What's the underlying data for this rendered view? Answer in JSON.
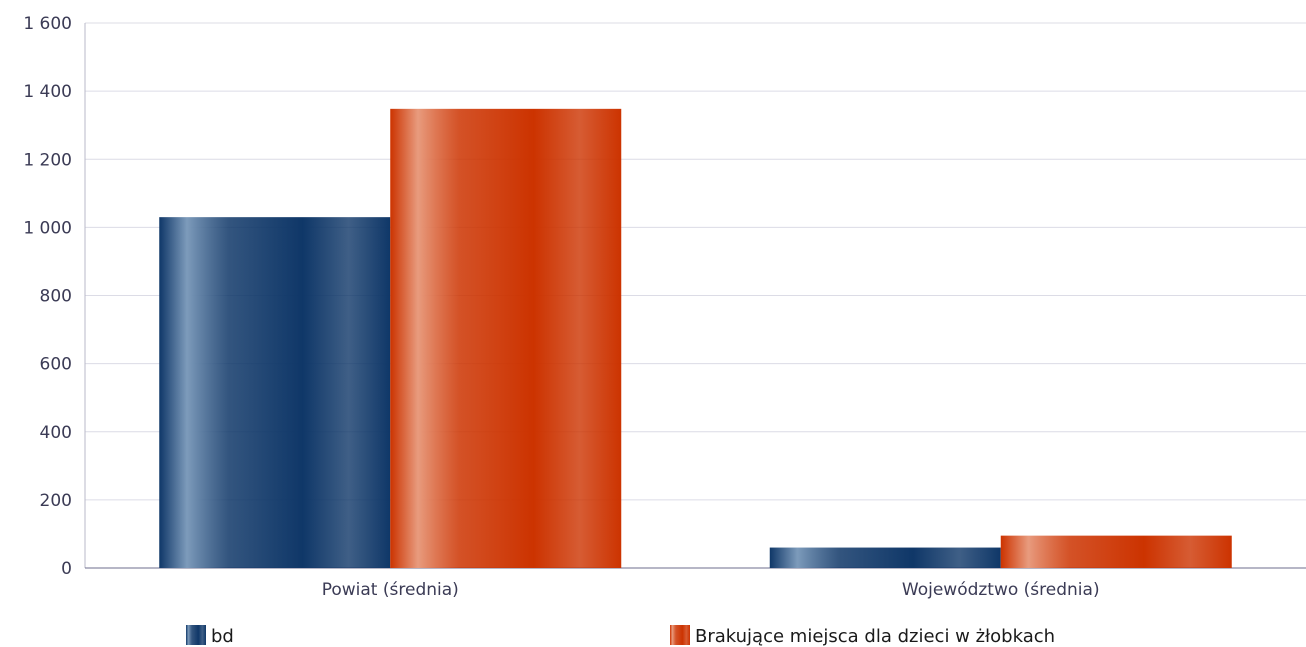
{
  "chart_data": {
    "type": "bar",
    "categories": [
      "Powiat (średnia)",
      "Województwo (średnia)"
    ],
    "series": [
      {
        "name": "bd",
        "values": [
          1030,
          60
        ],
        "color": "#0f3768",
        "highlight": "#7d9bbb"
      },
      {
        "name": "Brakujące miejsca dla dzieci w żłobkach",
        "values": [
          1348,
          95
        ],
        "color": "#cc3300",
        "highlight": "#e89b7e"
      }
    ],
    "title": "",
    "xlabel": "",
    "ylabel": "",
    "ylim": [
      0,
      1600
    ],
    "yticks": [
      0,
      200,
      400,
      600,
      800,
      1000,
      1200,
      1400,
      1600
    ],
    "ytick_labels": [
      "0",
      "200",
      "400",
      "600",
      "800",
      "1 000",
      "1 200",
      "1 400",
      "1 600"
    ],
    "grid": true,
    "legend_position": "bottom"
  }
}
